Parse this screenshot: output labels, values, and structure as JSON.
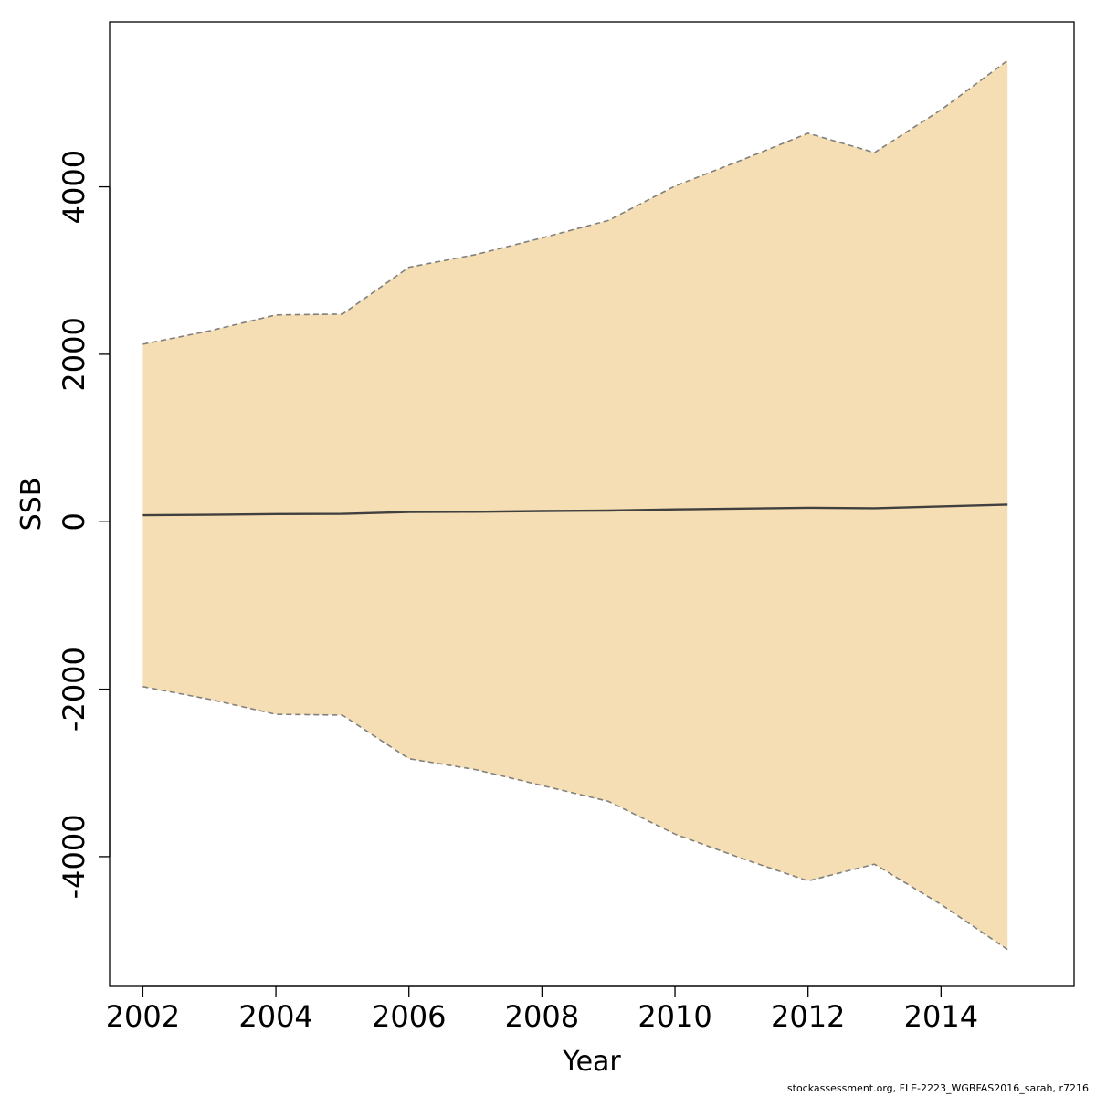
{
  "chart_data": {
    "type": "area",
    "title": "",
    "xlabel": "Year",
    "ylabel": "SSB",
    "xlim": [
      2001.5,
      2016.0
    ],
    "ylim": [
      -5550,
      5970
    ],
    "x_ticks": [
      2002,
      2004,
      2006,
      2008,
      2010,
      2012,
      2014
    ],
    "y_ticks": [
      -4000,
      -2000,
      0,
      2000,
      4000
    ],
    "grid": false,
    "legend": "none",
    "x": [
      2002,
      2003,
      2004,
      2005,
      2006,
      2007,
      2008,
      2009,
      2010,
      2011,
      2012,
      2013,
      2014,
      2015
    ],
    "series": [
      {
        "role": "estimate",
        "style": "solid",
        "values": [
          78,
          84,
          92,
          94,
          116,
          120,
          128,
          134,
          148,
          158,
          168,
          162,
          184,
          206
        ]
      },
      {
        "role": "upper",
        "style": "dashed",
        "values": [
          2120,
          2280,
          2470,
          2480,
          3040,
          3190,
          3390,
          3600,
          4010,
          4320,
          4640,
          4410,
          4920,
          5510
        ]
      },
      {
        "role": "lower",
        "style": "dashed",
        "values": [
          -1970,
          -2120,
          -2300,
          -2310,
          -2830,
          -2960,
          -3150,
          -3340,
          -3730,
          -4020,
          -4290,
          -4090,
          -4570,
          -5110
        ]
      }
    ],
    "colors": {
      "band": "#f5deb3",
      "band_border": "#808080",
      "line": "#404040"
    }
  },
  "footer": {
    "credit": "stockassessment.org, FLE-2223_WGBFAS2016_sarah, r7216"
  }
}
